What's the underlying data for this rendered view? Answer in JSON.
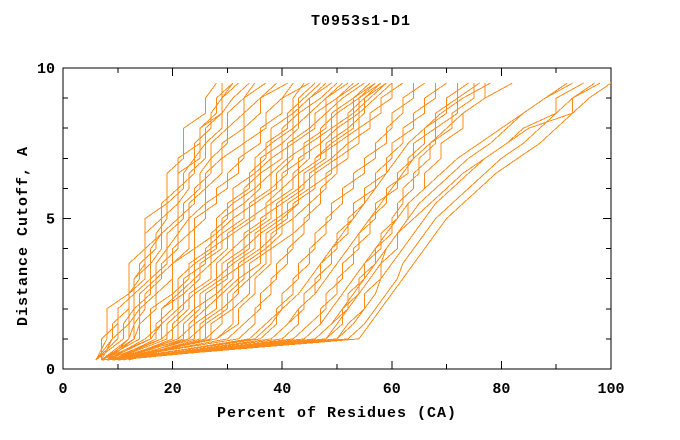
{
  "title": "T0953s1-D1",
  "chart_data": {
    "type": "line",
    "title": "T0953s1-D1",
    "xlabel": "Percent of Residues (CA)",
    "ylabel": "Distance Cutoff, A",
    "xlim": [
      0,
      100
    ],
    "ylim": [
      0,
      10
    ],
    "grid": "off",
    "legend": "none",
    "frame": "full-box-inward-ticks",
    "line_color": "#ff8c1a",
    "axis_color": "#000000",
    "background_color": "#ffffff",
    "xticks": [
      {
        "v": 0,
        "label": "0"
      },
      {
        "v": 20,
        "label": "20"
      },
      {
        "v": 40,
        "label": "40"
      },
      {
        "v": 60,
        "label": "60"
      },
      {
        "v": 80,
        "label": "80"
      },
      {
        "v": 100,
        "label": "100"
      }
    ],
    "xminor": [
      10,
      30,
      50,
      70,
      90
    ],
    "yticks": [
      {
        "v": 0,
        "label": "0"
      },
      {
        "v": 5,
        "label": "5"
      },
      {
        "v": 10,
        "label": "10"
      }
    ],
    "yminor": [
      1,
      2,
      3,
      4,
      6,
      7,
      8,
      9
    ],
    "n_series": 50,
    "cutoffs": [
      0.3,
      1,
      1.5,
      2,
      2.5,
      3,
      3.5,
      4,
      4.5,
      5,
      5.5,
      6,
      6.5,
      7,
      7.5,
      8,
      8.5,
      9,
      9.5
    ],
    "series": [
      [
        6,
        8,
        8,
        8,
        12,
        12,
        12,
        15,
        15,
        15,
        19,
        19,
        19,
        22,
        22,
        22,
        26,
        26,
        28
      ],
      [
        6,
        9,
        9,
        12,
        12,
        14,
        14,
        17,
        17,
        19,
        19,
        22,
        22,
        24,
        24,
        27,
        27,
        29,
        29
      ],
      [
        7,
        7,
        10,
        10,
        13,
        13,
        16,
        16,
        18,
        18,
        21,
        21,
        24,
        24,
        26,
        26,
        29,
        29,
        31
      ],
      [
        6,
        10,
        10,
        10,
        13,
        13,
        15,
        15,
        15,
        18,
        18,
        21,
        21,
        21,
        25,
        25,
        28,
        28,
        31
      ],
      [
        7,
        9,
        12,
        12,
        12,
        15,
        15,
        15,
        18,
        18,
        18,
        21,
        21,
        25,
        25,
        25,
        29,
        29,
        32
      ],
      [
        6,
        11,
        11,
        13,
        13,
        16,
        16,
        18,
        18,
        21,
        21,
        23,
        23,
        26,
        26,
        29,
        29,
        31,
        34
      ],
      [
        7,
        12,
        12,
        14,
        14,
        17,
        17,
        19,
        19,
        22,
        22,
        25,
        25,
        27,
        27,
        30,
        30,
        33,
        35
      ],
      [
        8,
        12,
        13,
        13,
        16,
        16,
        19,
        19,
        21,
        21,
        24,
        24,
        27,
        27,
        30,
        30,
        33,
        33,
        37
      ],
      [
        7,
        13,
        13,
        15,
        15,
        18,
        18,
        21,
        21,
        23,
        23,
        26,
        26,
        29,
        29,
        33,
        33,
        36,
        39
      ],
      [
        8,
        13,
        14,
        14,
        17,
        17,
        20,
        20,
        23,
        23,
        26,
        26,
        29,
        29,
        33,
        33,
        36,
        36,
        41
      ],
      [
        7,
        14,
        14,
        17,
        17,
        20,
        20,
        23,
        23,
        26,
        26,
        30,
        30,
        33,
        33,
        37,
        37,
        40,
        42
      ],
      [
        8,
        15,
        18,
        18,
        21,
        21,
        24,
        24,
        28,
        28,
        31,
        31,
        35,
        35,
        38,
        38,
        42,
        42,
        44
      ],
      [
        7,
        16,
        16,
        16,
        20,
        20,
        20,
        24,
        24,
        24,
        28,
        28,
        32,
        32,
        36,
        36,
        40,
        40,
        45
      ],
      [
        9,
        17,
        17,
        20,
        20,
        23,
        23,
        27,
        27,
        30,
        30,
        34,
        34,
        37,
        37,
        41,
        41,
        44,
        47
      ],
      [
        8,
        18,
        18,
        21,
        21,
        24,
        24,
        28,
        28,
        31,
        31,
        35,
        35,
        38,
        38,
        42,
        42,
        45,
        48
      ],
      [
        9,
        19,
        19,
        22,
        22,
        25,
        25,
        29,
        29,
        33,
        33,
        36,
        36,
        40,
        40,
        43,
        43,
        47,
        50
      ],
      [
        10,
        20,
        20,
        23,
        23,
        27,
        27,
        30,
        30,
        34,
        34,
        38,
        38,
        41,
        41,
        45,
        45,
        48,
        52
      ],
      [
        9,
        21,
        21,
        24,
        24,
        28,
        28,
        31,
        31,
        35,
        35,
        39,
        39,
        42,
        42,
        46,
        46,
        50,
        53
      ],
      [
        10,
        22,
        22,
        25,
        25,
        29,
        29,
        33,
        33,
        37,
        37,
        40,
        40,
        44,
        44,
        48,
        48,
        51,
        55
      ],
      [
        11,
        23,
        23,
        26,
        26,
        30,
        30,
        34,
        34,
        38,
        38,
        42,
        42,
        45,
        45,
        49,
        49,
        53,
        56
      ],
      [
        10,
        24,
        24,
        28,
        28,
        31,
        31,
        35,
        35,
        39,
        39,
        43,
        43,
        47,
        47,
        50,
        50,
        54,
        57
      ],
      [
        11,
        25,
        25,
        29,
        29,
        32,
        32,
        36,
        36,
        40,
        40,
        44,
        44,
        48,
        48,
        52,
        52,
        55,
        58
      ],
      [
        12,
        26,
        26,
        30,
        30,
        33,
        33,
        37,
        37,
        41,
        41,
        45,
        45,
        49,
        49,
        53,
        53,
        56,
        59
      ],
      [
        11,
        27,
        27,
        31,
        31,
        34,
        34,
        38,
        38,
        42,
        42,
        46,
        46,
        50,
        50,
        54,
        54,
        57,
        60
      ],
      [
        8,
        16,
        18,
        18,
        22,
        22,
        26,
        26,
        29,
        29,
        33,
        33,
        36,
        36,
        40,
        40,
        43,
        43,
        46
      ],
      [
        9,
        18,
        21,
        21,
        24,
        24,
        27,
        27,
        31,
        31,
        35,
        35,
        38,
        38,
        42,
        42,
        45,
        45,
        49
      ],
      [
        10,
        21,
        24,
        24,
        28,
        28,
        31,
        31,
        34,
        34,
        38,
        38,
        41,
        41,
        45,
        45,
        48,
        48,
        51
      ],
      [
        8,
        23,
        26,
        26,
        29,
        29,
        33,
        33,
        36,
        36,
        40,
        40,
        43,
        43,
        47,
        47,
        50,
        50,
        54
      ],
      [
        11,
        26,
        29,
        29,
        32,
        32,
        36,
        36,
        39,
        39,
        43,
        43,
        46,
        46,
        49,
        49,
        53,
        53,
        57
      ],
      [
        9,
        28,
        32,
        32,
        35,
        35,
        38,
        38,
        42,
        42,
        45,
        45,
        49,
        49,
        52,
        52,
        55,
        55,
        59
      ],
      [
        8,
        28,
        31,
        31,
        34,
        34,
        37,
        37,
        40,
        40,
        43,
        43,
        46,
        46,
        50,
        50,
        54,
        54,
        58
      ],
      [
        9,
        30,
        33,
        36,
        36,
        39,
        39,
        42,
        42,
        45,
        45,
        48,
        48,
        52,
        52,
        56,
        56,
        60,
        60
      ],
      [
        8,
        32,
        35,
        35,
        38,
        38,
        41,
        41,
        44,
        44,
        47,
        47,
        50,
        50,
        54,
        54,
        58,
        58,
        62
      ],
      [
        10,
        34,
        37,
        40,
        40,
        43,
        43,
        46,
        46,
        49,
        49,
        53,
        53,
        57,
        57,
        60,
        60,
        64,
        64
      ],
      [
        9,
        36,
        39,
        39,
        42,
        42,
        45,
        45,
        48,
        48,
        51,
        51,
        55,
        55,
        59,
        59,
        62,
        62,
        66
      ],
      [
        10,
        38,
        41,
        44,
        44,
        47,
        47,
        50,
        50,
        53,
        53,
        57,
        57,
        60,
        60,
        64,
        64,
        68,
        68
      ],
      [
        9,
        40,
        43,
        43,
        46,
        46,
        49,
        49,
        52,
        52,
        55,
        55,
        59,
        59,
        62,
        62,
        66,
        66,
        70
      ],
      [
        10,
        42,
        45,
        48,
        48,
        51,
        51,
        54,
        54,
        57,
        57,
        61,
        61,
        64,
        64,
        68,
        68,
        72,
        72
      ],
      [
        9,
        44,
        47,
        47,
        50,
        50,
        53,
        53,
        56,
        56,
        59,
        59,
        63,
        63,
        66,
        66,
        70,
        70,
        74
      ],
      [
        10,
        46,
        49,
        52,
        52,
        55,
        55,
        58,
        58,
        61,
        61,
        64,
        64,
        67,
        67,
        71,
        71,
        75,
        75
      ],
      [
        9,
        48,
        51,
        51,
        54,
        54,
        57,
        57,
        60,
        60,
        62,
        62,
        65,
        65,
        68,
        68,
        72,
        72,
        76
      ],
      [
        10,
        50,
        52,
        55,
        55,
        58,
        58,
        61,
        61,
        63,
        63,
        66,
        66,
        69,
        69,
        73,
        73,
        77,
        77
      ],
      [
        9,
        35,
        38,
        40,
        43,
        45,
        47,
        49,
        51,
        53,
        55,
        57,
        59,
        61,
        63,
        66,
        69,
        73,
        78
      ],
      [
        10,
        38,
        41,
        43,
        46,
        48,
        50,
        52,
        54,
        56,
        58,
        60,
        62,
        64,
        67,
        70,
        73,
        77,
        82
      ],
      [
        7,
        48,
        50,
        52,
        54,
        56,
        58,
        59,
        61,
        63,
        65,
        68,
        71,
        74,
        78,
        81,
        84,
        88,
        93
      ],
      [
        8,
        50,
        53,
        55,
        57,
        58,
        60,
        62,
        64,
        66,
        68,
        71,
        74,
        77,
        81,
        84,
        90,
        90,
        95
      ],
      [
        7,
        52,
        55,
        57,
        59,
        61,
        62,
        64,
        66,
        68,
        71,
        74,
        77,
        80,
        84,
        87,
        90,
        93,
        97
      ],
      [
        8,
        44,
        47,
        49,
        51,
        53,
        55,
        57,
        59,
        61,
        63,
        66,
        69,
        72,
        76,
        80,
        84,
        88,
        92
      ],
      [
        9,
        46,
        49,
        51,
        53,
        55,
        57,
        59,
        61,
        64,
        67,
        70,
        73,
        77,
        81,
        85,
        93,
        93,
        98
      ],
      [
        8,
        54,
        56,
        58,
        60,
        62,
        64,
        66,
        68,
        70,
        73,
        76,
        79,
        83,
        87,
        90,
        93,
        96,
        100
      ]
    ]
  }
}
